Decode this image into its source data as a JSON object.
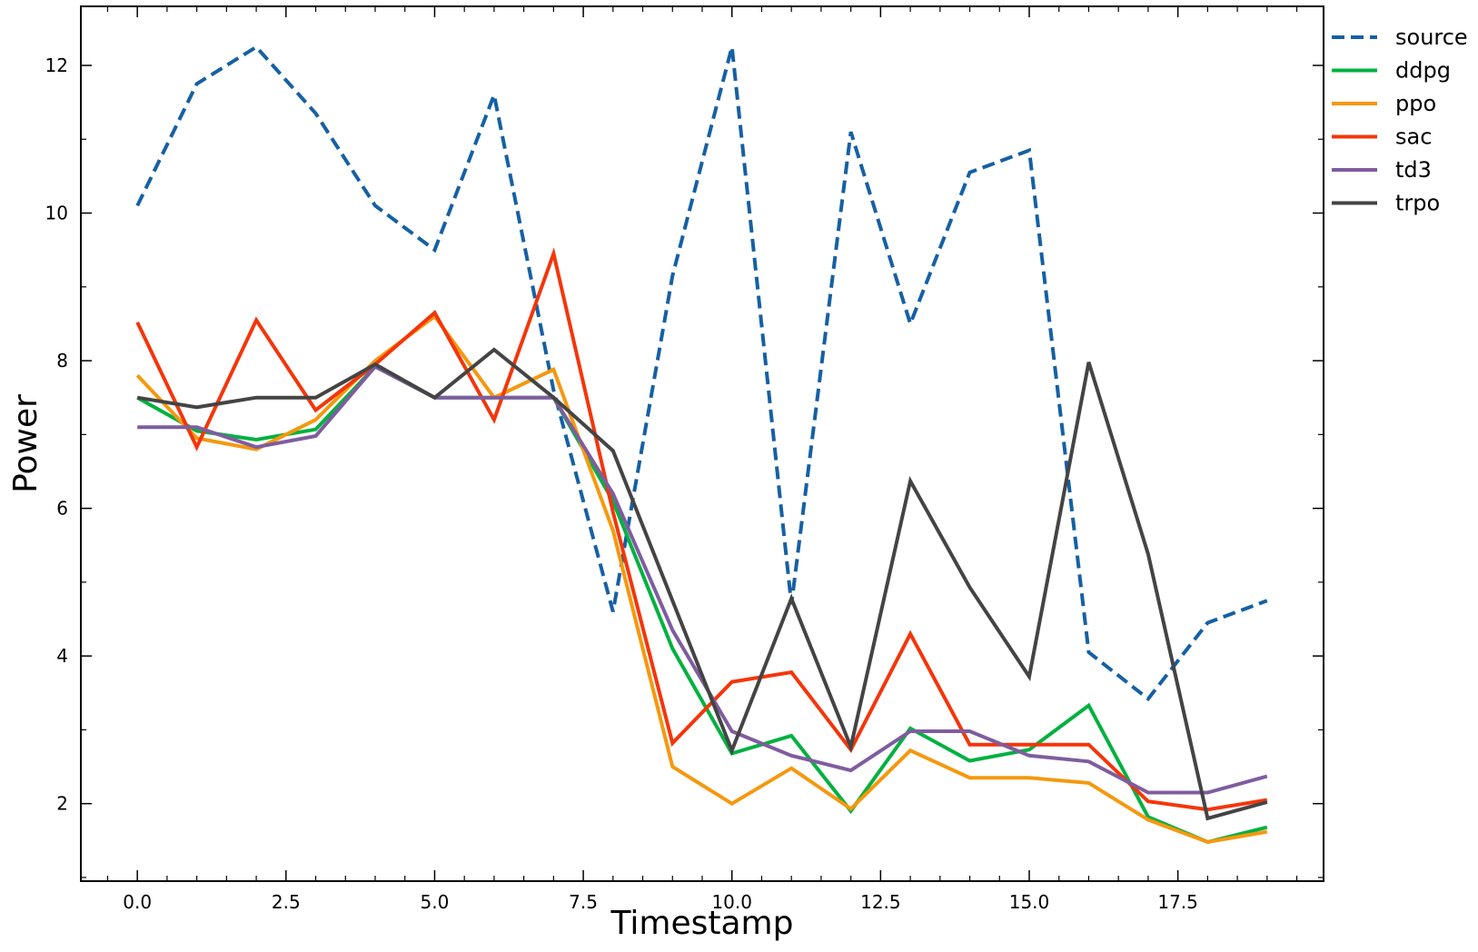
{
  "chart_data": {
    "type": "line",
    "title": "",
    "xlabel": "Timestamp",
    "ylabel": "Power",
    "xlim": [
      -0.95,
      19.95
    ],
    "ylim": [
      0.95,
      12.8
    ],
    "xticks": [
      0.0,
      2.5,
      5.0,
      7.5,
      10.0,
      12.5,
      15.0,
      17.5
    ],
    "xtick_labels": [
      "0.0",
      "2.5",
      "5.0",
      "7.5",
      "10.0",
      "12.5",
      "15.0",
      "17.5"
    ],
    "yticks": [
      2,
      4,
      6,
      8,
      10,
      12
    ],
    "ytick_labels": [
      "2",
      "4",
      "6",
      "8",
      "10",
      "12"
    ],
    "grid": false,
    "legend_position": "outside-top-right",
    "x": [
      0,
      1,
      2,
      3,
      4,
      5,
      6,
      7,
      8,
      9,
      10,
      11,
      12,
      13,
      14,
      15,
      16,
      17,
      18,
      19
    ],
    "series": [
      {
        "name": "source",
        "color": "#1660a4",
        "dashed": true,
        "values": [
          10.1,
          11.75,
          12.25,
          11.35,
          10.1,
          9.5,
          11.6,
          7.6,
          4.6,
          9.15,
          12.25,
          4.7,
          11.1,
          8.5,
          10.55,
          10.85,
          4.05,
          3.42,
          4.45,
          4.75
        ]
      },
      {
        "name": "ddpg",
        "color": "#00b140",
        "dashed": false,
        "values": [
          7.5,
          7.05,
          6.93,
          7.07,
          7.92,
          7.5,
          7.5,
          7.5,
          6.1,
          4.1,
          2.68,
          2.92,
          1.9,
          3.02,
          2.58,
          2.73,
          3.33,
          1.82,
          1.48,
          1.68
        ]
      },
      {
        "name": "ppo",
        "color": "#f5980e",
        "dashed": false,
        "values": [
          7.8,
          6.95,
          6.8,
          7.2,
          8.0,
          8.6,
          7.5,
          7.88,
          5.7,
          2.5,
          2.0,
          2.48,
          1.93,
          2.72,
          2.35,
          2.35,
          2.28,
          1.78,
          1.48,
          1.62
        ]
      },
      {
        "name": "sac",
        "color": "#f5350a",
        "dashed": false,
        "values": [
          8.52,
          6.83,
          8.55,
          7.33,
          7.95,
          8.65,
          7.2,
          9.45,
          5.95,
          2.82,
          3.65,
          3.78,
          2.73,
          4.3,
          2.8,
          2.8,
          2.8,
          2.03,
          1.92,
          2.05
        ]
      },
      {
        "name": "td3",
        "color": "#7f5c9f",
        "dashed": false,
        "values": [
          7.1,
          7.1,
          6.83,
          6.98,
          7.92,
          7.5,
          7.5,
          7.5,
          6.2,
          4.35,
          2.98,
          2.65,
          2.45,
          2.98,
          2.98,
          2.65,
          2.57,
          2.15,
          2.15,
          2.37
        ]
      },
      {
        "name": "trpo",
        "color": "#444444",
        "dashed": false,
        "values": [
          7.5,
          7.37,
          7.5,
          7.5,
          7.95,
          7.5,
          8.15,
          7.5,
          6.78,
          4.75,
          2.72,
          4.78,
          2.77,
          6.37,
          4.93,
          3.72,
          7.98,
          5.38,
          1.8,
          2.02
        ]
      }
    ]
  }
}
